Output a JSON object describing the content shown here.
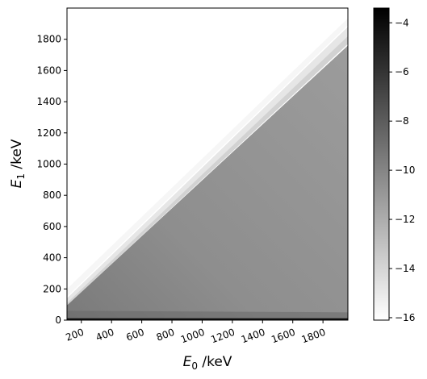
{
  "chart_data": {
    "type": "heatmap",
    "xlabel": {
      "symbol": "E",
      "subscript": "0",
      "unit": " /keV"
    },
    "ylabel": {
      "symbol": "E",
      "subscript": "1",
      "unit": " /keV"
    },
    "xlim": [
      105,
      1965
    ],
    "ylim": [
      0,
      2000
    ],
    "x_ticks": [
      200,
      400,
      600,
      800,
      1000,
      1200,
      1400,
      1600,
      1800
    ],
    "y_ticks": [
      0,
      200,
      400,
      600,
      800,
      1000,
      1200,
      1400,
      1600,
      1800
    ],
    "colorbar": {
      "range": [
        -16.1,
        -3.4
      ],
      "ticks": [
        -4,
        -6,
        -8,
        -10,
        -12,
        -14,
        -16
      ],
      "colormap": "gray_r"
    },
    "regions": [
      {
        "name": "empty",
        "condition": "E1 > E0",
        "level": -16.1
      },
      {
        "name": "ridge",
        "condition": "E1 ≈ E0",
        "level": -13.5
      },
      {
        "name": "continuum",
        "condition": "E1 < E0 - 100",
        "level": -9.6
      },
      {
        "name": "low-E1 band",
        "condition": "E1 < 60",
        "level": -7.5
      },
      {
        "name": "zero line",
        "condition": "E1 ≈ 0",
        "level": -3.5
      }
    ]
  },
  "colors": {
    "axis": "#000000",
    "background": "#ffffff"
  }
}
